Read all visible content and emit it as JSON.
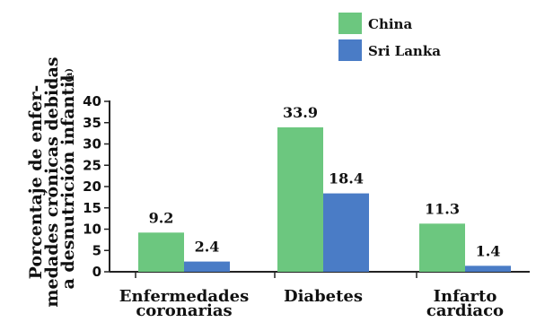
{
  "chart_data": {
    "type": "bar",
    "categories": [
      [
        "Enfermedades",
        "coronarias"
      ],
      [
        "Diabetes"
      ],
      [
        "Infarto",
        "cardiaco"
      ]
    ],
    "series": [
      {
        "name": "China",
        "values": [
          9.2,
          33.9,
          11.3
        ],
        "color": "#6cc77f"
      },
      {
        "name": "Sri Lanka",
        "values": [
          2.4,
          18.4,
          1.4
        ],
        "color": "#4a7cc6"
      }
    ],
    "value_labels": [
      [
        "9.2",
        "33.9",
        "11.3"
      ],
      [
        "2.4",
        "18.4",
        "1.4"
      ]
    ],
    "ylabel": [
      "Porcentaje de enfer-",
      "medades crónicas debidas",
      "a desnutrición infantil"
    ],
    "ylabel_note": "(a)",
    "ylim": [
      0,
      40
    ],
    "yticks": [
      "0",
      "5",
      "10",
      "15",
      "20",
      "25",
      "30",
      "35",
      "40"
    ],
    "grid": false,
    "legend_position": "top-right"
  }
}
